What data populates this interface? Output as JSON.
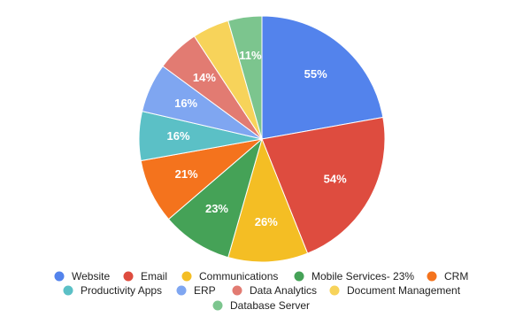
{
  "chart_data": {
    "type": "pie",
    "categories": [
      "Website",
      "Email",
      "Communications",
      "Mobile Services- 23%",
      "CRM",
      "Productivity Apps",
      "ERP",
      "Data Analytics",
      "Document Management",
      "Database Server"
    ],
    "values": [
      55,
      54,
      26,
      23,
      21,
      16,
      16,
      14,
      12,
      11
    ],
    "value_labels": [
      "55%",
      "54%",
      "26%",
      "23%",
      "21%",
      "16%",
      "16%",
      "14%",
      null,
      "11%"
    ],
    "colors": [
      "#5383ec",
      "#de4c3f",
      "#f4be24",
      "#45a257",
      "#f4731d",
      "#5bc0c6",
      "#7fa6f1",
      "#e27b72",
      "#f7d35a",
      "#7cc58e"
    ],
    "legend": "bottom"
  }
}
